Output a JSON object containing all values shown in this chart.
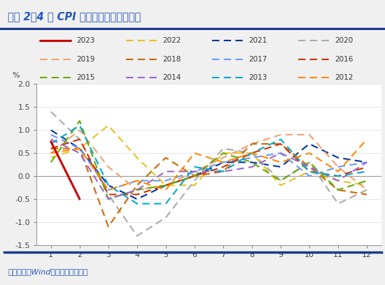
{
  "title": "图表 2：4 月 CPI 环比基本符合季节规律",
  "ylabel": "%",
  "source_note": "资料来源：Wind，国盛证券研究所",
  "ylim": [
    -1.5,
    2.0
  ],
  "yticks": [
    -1.5,
    -1.0,
    -0.5,
    0.0,
    0.5,
    1.0,
    1.5,
    2.0
  ],
  "xticks": [
    1,
    2,
    3,
    4,
    5,
    6,
    7,
    8,
    9,
    10,
    11,
    12
  ],
  "series": {
    "2023": {
      "color": "#cc0000",
      "linewidth": 2.2,
      "linestyle": "solid",
      "data": [
        0.75,
        -0.5,
        null,
        null,
        null,
        null,
        null,
        null,
        null,
        null,
        null,
        null
      ]
    },
    "2022": {
      "color": "#e8c020",
      "linewidth": 1.5,
      "linestyle": "dashed",
      "data": [
        0.4,
        0.6,
        1.1,
        0.4,
        -0.2,
        -0.2,
        0.5,
        0.5,
        -0.2,
        0.1,
        -0.1,
        -0.2
      ]
    },
    "2021": {
      "color": "#003399",
      "linewidth": 1.5,
      "linestyle": "dashed",
      "data": [
        1.0,
        0.6,
        -0.2,
        -0.5,
        -0.2,
        0.0,
        0.3,
        0.3,
        0.2,
        0.7,
        0.4,
        0.3
      ]
    },
    "2020": {
      "color": "#aaaaaa",
      "linewidth": 1.5,
      "linestyle": "dashed",
      "data": [
        1.4,
        0.8,
        -0.4,
        -1.3,
        -0.9,
        -0.1,
        0.6,
        0.5,
        -0.1,
        0.3,
        -0.6,
        -0.3
      ]
    },
    "2019": {
      "color": "#f4a070",
      "linewidth": 1.5,
      "linestyle": "dashed",
      "data": [
        0.5,
        1.0,
        0.2,
        -0.3,
        -0.2,
        0.1,
        0.4,
        0.7,
        0.9,
        0.9,
        0.2,
        -0.3
      ]
    },
    "2018": {
      "color": "#cc6600",
      "linewidth": 1.5,
      "linestyle": "dashed",
      "data": [
        0.6,
        0.6,
        -1.1,
        -0.2,
        0.4,
        0.0,
        0.1,
        0.7,
        0.7,
        0.2,
        -0.3,
        -0.4
      ]
    },
    "2017": {
      "color": "#6699ff",
      "linewidth": 1.5,
      "linestyle": "dashed",
      "data": [
        0.9,
        0.6,
        -0.3,
        -0.1,
        -0.1,
        0.1,
        0.3,
        0.4,
        0.5,
        0.0,
        0.2,
        0.3
      ]
    },
    "2016": {
      "color": "#cc3300",
      "linewidth": 1.5,
      "linestyle": "dashed",
      "data": [
        0.6,
        0.8,
        -0.4,
        -0.4,
        -0.2,
        0.0,
        0.2,
        0.5,
        0.7,
        0.1,
        0.0,
        0.2
      ]
    },
    "2015": {
      "color": "#66aa00",
      "linewidth": 1.5,
      "linestyle": "dashed",
      "data": [
        0.3,
        1.2,
        -0.5,
        -0.3,
        -0.2,
        0.0,
        0.5,
        0.3,
        -0.1,
        0.3,
        -0.3,
        -0.1
      ]
    },
    "2014": {
      "color": "#9966cc",
      "linewidth": 1.5,
      "linestyle": "dashed",
      "data": [
        0.8,
        0.5,
        -0.5,
        -0.3,
        0.1,
        0.1,
        0.1,
        0.2,
        0.5,
        0.2,
        -0.1,
        0.3
      ]
    },
    "2013": {
      "color": "#00aacc",
      "linewidth": 1.5,
      "linestyle": "dashed",
      "data": [
        0.7,
        1.1,
        -0.2,
        -0.6,
        -0.6,
        0.2,
        0.1,
        0.5,
        0.8,
        0.1,
        0.0,
        0.1
      ]
    },
    "2012": {
      "color": "#ff8800",
      "linewidth": 1.5,
      "linestyle": "dashed",
      "data": [
        0.5,
        0.6,
        -0.3,
        -0.1,
        -0.3,
        0.5,
        0.3,
        0.5,
        0.3,
        0.5,
        0.1,
        0.8
      ]
    }
  },
  "legend_order": [
    "2023",
    "2022",
    "2021",
    "2020",
    "2019",
    "2018",
    "2017",
    "2016",
    "2015",
    "2014",
    "2013",
    "2012"
  ],
  "background_color": "#f0f0f0",
  "plot_bg": "#ffffff",
  "title_color": "#2255bb",
  "source_color": "#2255bb",
  "border_color": "#1a3a8a"
}
